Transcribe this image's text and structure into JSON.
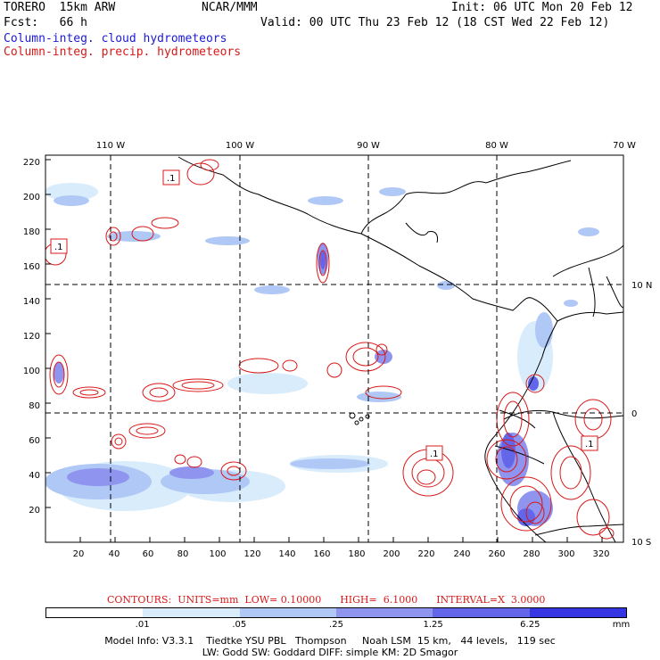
{
  "header": {
    "model": "TORERO  15km ARW",
    "center": "NCAR/MMM",
    "init": "Init: 06 UTC Mon 20 Feb 12",
    "fcst": "Fcst:   66 h",
    "valid": "Valid: 00 UTC Thu 23 Feb 12 (18 CST Wed 22 Feb 12)",
    "field1": "Column-integ. cloud hydrometeors",
    "field2": "Column-integ. precip. hydrometeors"
  },
  "axes": {
    "x_ticks": [
      "20",
      "40",
      "60",
      "80",
      "100",
      "120",
      "140",
      "160",
      "180",
      "200",
      "220",
      "240",
      "260",
      "280",
      "300",
      "320"
    ],
    "y_ticks": [
      "20",
      "40",
      "60",
      "80",
      "100",
      "120",
      "140",
      "160",
      "180",
      "200",
      "220"
    ],
    "lon_labels": [
      "110 W",
      "100 W",
      "90 W",
      "80 W",
      "70 W"
    ],
    "lat_labels": [
      "10 N",
      "0",
      "10 S"
    ]
  },
  "contour_boxes": [
    ".1",
    ".1",
    ".1",
    ".1"
  ],
  "contours": {
    "text": "CONTOURS:  UNITS=mm  LOW= 0.10000      HIGH=  6.1000      INTERVAL=X  3.0000"
  },
  "colorbar": {
    "labels": [
      ".01",
      ".05",
      ".25",
      "1.25",
      "6.25"
    ],
    "unit": "mm",
    "colors": [
      "#ffffff",
      "#d8ecfb",
      "#b0c8f6",
      "#8f95ef",
      "#6466ea",
      "#3535e2"
    ]
  },
  "model_info": {
    "line1": "Model Info: V3.3.1    Tiedtke YSU PBL   Thompson     Noah LSM  15 km,   44 levels,   119 sec",
    "line2": "LW: Godd SW: Goddard DIFF: simple KM: 2D Smagor"
  }
}
